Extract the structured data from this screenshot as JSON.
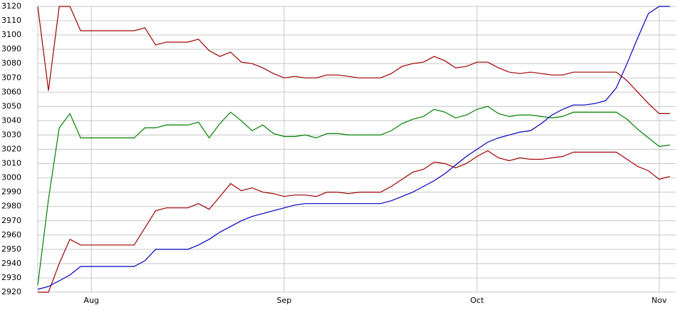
{
  "chart_data": {
    "type": "line",
    "categories": [
      null,
      null,
      null,
      null,
      null,
      "Aug",
      null,
      null,
      null,
      null,
      null,
      null,
      null,
      null,
      null,
      null,
      null,
      null,
      null,
      null,
      null,
      null,
      null,
      "Sep",
      null,
      null,
      null,
      null,
      null,
      null,
      null,
      null,
      null,
      null,
      null,
      null,
      null,
      null,
      null,
      null,
      null,
      "Oct",
      null,
      null,
      null,
      null,
      null,
      null,
      null,
      null,
      null,
      null,
      null,
      null,
      null,
      null,
      null,
      null,
      "Nov",
      null
    ],
    "ylim": [
      2920,
      3120
    ],
    "yticks": [
      2920,
      2930,
      2940,
      2950,
      2960,
      2970,
      2980,
      2990,
      3000,
      3010,
      3020,
      3030,
      3040,
      3050,
      3060,
      3070,
      3080,
      3090,
      3100,
      3110,
      3120
    ],
    "grid": true,
    "series": [
      {
        "color": "#a00000",
        "values": [
          3120,
          3061,
          3120,
          3120,
          3103,
          3103,
          3103,
          3103,
          3103,
          3103,
          3105,
          3093,
          3095,
          3095,
          3095,
          3097,
          3089,
          3085,
          3088,
          3081,
          3080,
          3077,
          3073,
          3070,
          3071,
          3070,
          3070,
          3072,
          3072,
          3071,
          3070,
          3070,
          3070,
          3073,
          3078,
          3080,
          3081,
          3085,
          3082,
          3077,
          3078,
          3081,
          3081,
          3077,
          3074,
          3073,
          3074,
          3073,
          3072,
          3072,
          3074,
          3074,
          3074,
          3074,
          3074,
          3068,
          3060,
          3052,
          3045,
          3045
        ]
      },
      {
        "color": "#008000",
        "values": [
          2925,
          2985,
          3035,
          3045,
          3028,
          3028,
          3028,
          3028,
          3028,
          3028,
          3035,
          3035,
          3037,
          3037,
          3037,
          3039,
          3028,
          3038,
          3046,
          3040,
          3033,
          3037,
          3031,
          3029,
          3029,
          3030,
          3028,
          3031,
          3031,
          3030,
          3030,
          3030,
          3030,
          3033,
          3038,
          3041,
          3043,
          3048,
          3046,
          3042,
          3044,
          3048,
          3050,
          3045,
          3043,
          3044,
          3044,
          3043,
          3042,
          3043,
          3046,
          3046,
          3046,
          3046,
          3046,
          3041,
          3034,
          3028,
          3022,
          3023
        ]
      },
      {
        "color": "#a00000",
        "values": [
          2920,
          2920,
          2940,
          2957,
          2953,
          2953,
          2953,
          2953,
          2953,
          2953,
          2965,
          2977,
          2979,
          2979,
          2979,
          2982,
          2978,
          2987,
          2996,
          2991,
          2993,
          2990,
          2989,
          2987,
          2988,
          2988,
          2987,
          2990,
          2990,
          2989,
          2990,
          2990,
          2990,
          2994,
          2999,
          3004,
          3006,
          3011,
          3010,
          3007,
          3010,
          3015,
          3019,
          3014,
          3012,
          3014,
          3013,
          3013,
          3014,
          3015,
          3018,
          3018,
          3018,
          3018,
          3018,
          3013,
          3008,
          3005,
          2999,
          3001
        ]
      },
      {
        "color": "#0000c0",
        "values": [
          2922,
          2924,
          2928,
          2932,
          2938,
          2938,
          2938,
          2938,
          2938,
          2938,
          2942,
          2950,
          2950,
          2950,
          2950,
          2953,
          2957,
          2962,
          2966,
          2970,
          2973,
          2975,
          2977,
          2979,
          2981,
          2982,
          2982,
          2982,
          2982,
          2982,
          2982,
          2982,
          2982,
          2984,
          2987,
          2990,
          2994,
          2998,
          3003,
          3009,
          3015,
          3020,
          3025,
          3028,
          3030,
          3032,
          3033,
          3038,
          3044,
          3048,
          3051,
          3051,
          3052,
          3054,
          3063,
          3080,
          3098,
          3115,
          3120,
          3120
        ]
      }
    ]
  }
}
